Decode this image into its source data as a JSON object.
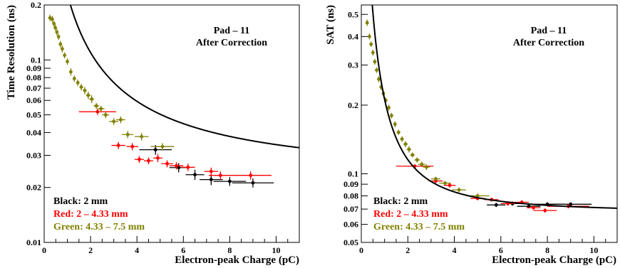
{
  "colors": {
    "black": "#000000",
    "red": "#ff0000",
    "green": "#808000"
  },
  "chart_data": [
    {
      "type": "scatter",
      "title": "Pad – 11",
      "subtitle": "After Correction",
      "xlabel": "Electron-peak Charge (pC)",
      "ylabel": "Time Resolution (ns)",
      "xlim": [
        0,
        11
      ],
      "ylim": [
        0.01,
        0.2
      ],
      "yscale": "log",
      "grid": false,
      "legend_placement": "bottom-left",
      "x_tick_labels": [
        "0",
        "2",
        "4",
        "6",
        "8",
        "10"
      ],
      "x_ticks": [
        0,
        2,
        4,
        6,
        8,
        10
      ],
      "y_ticks": [
        0.01,
        0.02,
        0.03,
        0.04,
        0.05,
        0.06,
        0.07,
        0.08,
        0.09,
        0.1,
        0.2
      ],
      "y_tick_labels": [
        "0.01",
        "0.02",
        "0.03",
        "0.04",
        "0.05",
        "0.06",
        "0.07",
        "0.08",
        "0.09",
        "0.1",
        "0.2"
      ],
      "fit_curve": {
        "a": 0.0227,
        "b": 0.2071,
        "k": 1.25
      },
      "series": [
        {
          "name": "Black: 2 mm",
          "color": "#000000",
          "points": [
            {
              "x": 4.8,
              "y": 0.0322,
              "xerr": 0.7,
              "yerr": 0.002
            },
            {
              "x": 5.8,
              "y": 0.0257,
              "xerr": 0.4,
              "yerr": 0.0015
            },
            {
              "x": 6.5,
              "y": 0.0235,
              "xerr": 0.4,
              "yerr": 0.0015
            },
            {
              "x": 7.2,
              "y": 0.0221,
              "xerr": 0.5,
              "yerr": 0.0015
            },
            {
              "x": 8.0,
              "y": 0.0216,
              "xerr": 0.7,
              "yerr": 0.0012
            },
            {
              "x": 9.0,
              "y": 0.0212,
              "xerr": 0.9,
              "yerr": 0.0012
            }
          ]
        },
        {
          "name": "Red: 2 – 4.33 mm",
          "color": "#ff0000",
          "points": [
            {
              "x": 2.3,
              "y": 0.052,
              "xerr": 0.8,
              "yerr": 0.002
            },
            {
              "x": 3.2,
              "y": 0.034,
              "xerr": 0.3,
              "yerr": 0.0015
            },
            {
              "x": 3.8,
              "y": 0.0335,
              "xerr": 0.25,
              "yerr": 0.0015
            },
            {
              "x": 4.1,
              "y": 0.0285,
              "xerr": 0.2,
              "yerr": 0.0012
            },
            {
              "x": 4.5,
              "y": 0.028,
              "xerr": 0.2,
              "yerr": 0.0012
            },
            {
              "x": 4.9,
              "y": 0.029,
              "xerr": 0.2,
              "yerr": 0.0015
            },
            {
              "x": 5.3,
              "y": 0.027,
              "xerr": 0.25,
              "yerr": 0.0012
            },
            {
              "x": 5.7,
              "y": 0.0263,
              "xerr": 0.3,
              "yerr": 0.0012
            },
            {
              "x": 6.2,
              "y": 0.0258,
              "xerr": 0.3,
              "yerr": 0.0012
            },
            {
              "x": 7.2,
              "y": 0.0245,
              "xerr": 0.3,
              "yerr": 0.0012
            },
            {
              "x": 7.6,
              "y": 0.0233,
              "xerr": 0.5,
              "yerr": 0.0012
            },
            {
              "x": 8.9,
              "y": 0.0233,
              "xerr": 0.9,
              "yerr": 0.0012
            }
          ]
        },
        {
          "name": "Green: 4.33 – 7.5 mm",
          "color": "#808000",
          "points": [
            {
              "x": 0.25,
              "y": 0.17,
              "xerr": 0.05,
              "yerr": 0.007
            },
            {
              "x": 0.35,
              "y": 0.167,
              "xerr": 0.05,
              "yerr": 0.007
            },
            {
              "x": 0.42,
              "y": 0.158,
              "xerr": 0.05,
              "yerr": 0.006
            },
            {
              "x": 0.48,
              "y": 0.15,
              "xerr": 0.05,
              "yerr": 0.006
            },
            {
              "x": 0.55,
              "y": 0.142,
              "xerr": 0.05,
              "yerr": 0.006
            },
            {
              "x": 0.62,
              "y": 0.134,
              "xerr": 0.05,
              "yerr": 0.005
            },
            {
              "x": 0.7,
              "y": 0.122,
              "xerr": 0.05,
              "yerr": 0.005
            },
            {
              "x": 0.78,
              "y": 0.115,
              "xerr": 0.05,
              "yerr": 0.005
            },
            {
              "x": 0.88,
              "y": 0.106,
              "xerr": 0.05,
              "yerr": 0.004
            },
            {
              "x": 1.0,
              "y": 0.098,
              "xerr": 0.06,
              "yerr": 0.004
            },
            {
              "x": 1.15,
              "y": 0.086,
              "xerr": 0.06,
              "yerr": 0.004
            },
            {
              "x": 1.3,
              "y": 0.079,
              "xerr": 0.07,
              "yerr": 0.003
            },
            {
              "x": 1.45,
              "y": 0.075,
              "xerr": 0.07,
              "yerr": 0.003
            },
            {
              "x": 1.6,
              "y": 0.071,
              "xerr": 0.08,
              "yerr": 0.003
            },
            {
              "x": 1.75,
              "y": 0.068,
              "xerr": 0.08,
              "yerr": 0.003
            },
            {
              "x": 1.9,
              "y": 0.064,
              "xerr": 0.1,
              "yerr": 0.003
            },
            {
              "x": 2.05,
              "y": 0.061,
              "xerr": 0.1,
              "yerr": 0.003
            },
            {
              "x": 2.25,
              "y": 0.056,
              "xerr": 0.12,
              "yerr": 0.002
            },
            {
              "x": 2.45,
              "y": 0.054,
              "xerr": 0.15,
              "yerr": 0.002
            },
            {
              "x": 2.65,
              "y": 0.05,
              "xerr": 0.15,
              "yerr": 0.002
            },
            {
              "x": 3.0,
              "y": 0.046,
              "xerr": 0.2,
              "yerr": 0.002
            },
            {
              "x": 3.3,
              "y": 0.047,
              "xerr": 0.2,
              "yerr": 0.002
            },
            {
              "x": 3.6,
              "y": 0.039,
              "xerr": 0.25,
              "yerr": 0.0018
            },
            {
              "x": 4.2,
              "y": 0.038,
              "xerr": 0.3,
              "yerr": 0.0018
            },
            {
              "x": 5.1,
              "y": 0.0335,
              "xerr": 0.5,
              "yerr": 0.0015
            }
          ]
        }
      ]
    },
    {
      "type": "scatter",
      "title": "Pad – 11",
      "subtitle": "After Correction",
      "xlabel": "Electron-peak Charge (pC)",
      "ylabel": "SAT (ns)",
      "xlim": [
        0,
        11
      ],
      "ylim": [
        0.05,
        0.55
      ],
      "yscale": "log",
      "grid": false,
      "legend_placement": "bottom-left",
      "x_tick_labels": [
        "0",
        "2",
        "4",
        "6",
        "8",
        "10"
      ],
      "x_ticks": [
        0,
        2,
        4,
        6,
        8,
        10
      ],
      "y_ticks": [
        0.05,
        0.06,
        0.07,
        0.08,
        0.09,
        0.1,
        0.2,
        0.3,
        0.4,
        0.5
      ],
      "y_tick_labels": [
        "0.05",
        "0.06",
        "0.07",
        "0.08",
        "0.09",
        "0.1",
        "0.2",
        "0.3",
        "0.4",
        "0.5"
      ],
      "fit_curve": {
        "a": 0.0675,
        "b": 0.145,
        "k": 1.6
      },
      "series": [
        {
          "name": "Black: 2 mm",
          "color": "#000000",
          "points": [
            {
              "x": 5.8,
              "y": 0.073,
              "xerr": 0.4,
              "yerr": 0.0015
            },
            {
              "x": 6.5,
              "y": 0.074,
              "xerr": 0.4,
              "yerr": 0.0015
            },
            {
              "x": 7.2,
              "y": 0.072,
              "xerr": 0.5,
              "yerr": 0.0015
            },
            {
              "x": 8.0,
              "y": 0.0735,
              "xerr": 0.7,
              "yerr": 0.0015
            },
            {
              "x": 9.0,
              "y": 0.0735,
              "xerr": 0.9,
              "yerr": 0.0015
            }
          ]
        },
        {
          "name": "Red: 2 – 4.33 mm",
          "color": "#ff0000",
          "points": [
            {
              "x": 2.3,
              "y": 0.108,
              "xerr": 0.8,
              "yerr": 0.002
            },
            {
              "x": 3.2,
              "y": 0.093,
              "xerr": 0.3,
              "yerr": 0.002
            },
            {
              "x": 3.8,
              "y": 0.089,
              "xerr": 0.25,
              "yerr": 0.002
            },
            {
              "x": 5.0,
              "y": 0.078,
              "xerr": 0.3,
              "yerr": 0.0015
            },
            {
              "x": 5.6,
              "y": 0.077,
              "xerr": 0.3,
              "yerr": 0.0015
            },
            {
              "x": 6.3,
              "y": 0.074,
              "xerr": 0.3,
              "yerr": 0.0015
            },
            {
              "x": 6.9,
              "y": 0.075,
              "xerr": 0.3,
              "yerr": 0.0015
            },
            {
              "x": 7.4,
              "y": 0.071,
              "xerr": 0.3,
              "yerr": 0.0015
            },
            {
              "x": 7.9,
              "y": 0.069,
              "xerr": 0.5,
              "yerr": 0.0015
            },
            {
              "x": 8.9,
              "y": 0.072,
              "xerr": 0.9,
              "yerr": 0.0015
            }
          ]
        },
        {
          "name": "Green: 4.33 – 7.5 mm",
          "color": "#808000",
          "points": [
            {
              "x": 0.25,
              "y": 0.46,
              "xerr": 0.05,
              "yerr": 0.015
            },
            {
              "x": 0.35,
              "y": 0.4,
              "xerr": 0.05,
              "yerr": 0.012
            },
            {
              "x": 0.42,
              "y": 0.37,
              "xerr": 0.05,
              "yerr": 0.01
            },
            {
              "x": 0.5,
              "y": 0.34,
              "xerr": 0.05,
              "yerr": 0.01
            },
            {
              "x": 0.58,
              "y": 0.31,
              "xerr": 0.05,
              "yerr": 0.009
            },
            {
              "x": 0.66,
              "y": 0.285,
              "xerr": 0.05,
              "yerr": 0.008
            },
            {
              "x": 0.75,
              "y": 0.26,
              "xerr": 0.05,
              "yerr": 0.008
            },
            {
              "x": 0.85,
              "y": 0.24,
              "xerr": 0.05,
              "yerr": 0.007
            },
            {
              "x": 0.95,
              "y": 0.225,
              "xerr": 0.06,
              "yerr": 0.007
            },
            {
              "x": 1.05,
              "y": 0.21,
              "xerr": 0.06,
              "yerr": 0.006
            },
            {
              "x": 1.18,
              "y": 0.195,
              "xerr": 0.06,
              "yerr": 0.006
            },
            {
              "x": 1.3,
              "y": 0.18,
              "xerr": 0.07,
              "yerr": 0.005
            },
            {
              "x": 1.45,
              "y": 0.165,
              "xerr": 0.07,
              "yerr": 0.005
            },
            {
              "x": 1.6,
              "y": 0.152,
              "xerr": 0.08,
              "yerr": 0.004
            },
            {
              "x": 1.75,
              "y": 0.142,
              "xerr": 0.08,
              "yerr": 0.004
            },
            {
              "x": 1.9,
              "y": 0.135,
              "xerr": 0.1,
              "yerr": 0.004
            },
            {
              "x": 2.05,
              "y": 0.128,
              "xerr": 0.1,
              "yerr": 0.004
            },
            {
              "x": 2.2,
              "y": 0.121,
              "xerr": 0.1,
              "yerr": 0.003
            },
            {
              "x": 2.4,
              "y": 0.115,
              "xerr": 0.12,
              "yerr": 0.003
            },
            {
              "x": 2.6,
              "y": 0.11,
              "xerr": 0.15,
              "yerr": 0.003
            },
            {
              "x": 2.8,
              "y": 0.107,
              "xerr": 0.15,
              "yerr": 0.003
            },
            {
              "x": 3.2,
              "y": 0.095,
              "xerr": 0.2,
              "yerr": 0.002
            },
            {
              "x": 3.6,
              "y": 0.091,
              "xerr": 0.25,
              "yerr": 0.002
            },
            {
              "x": 4.2,
              "y": 0.085,
              "xerr": 0.3,
              "yerr": 0.002
            },
            {
              "x": 5.0,
              "y": 0.08,
              "xerr": 0.5,
              "yerr": 0.002
            }
          ]
        }
      ]
    }
  ]
}
